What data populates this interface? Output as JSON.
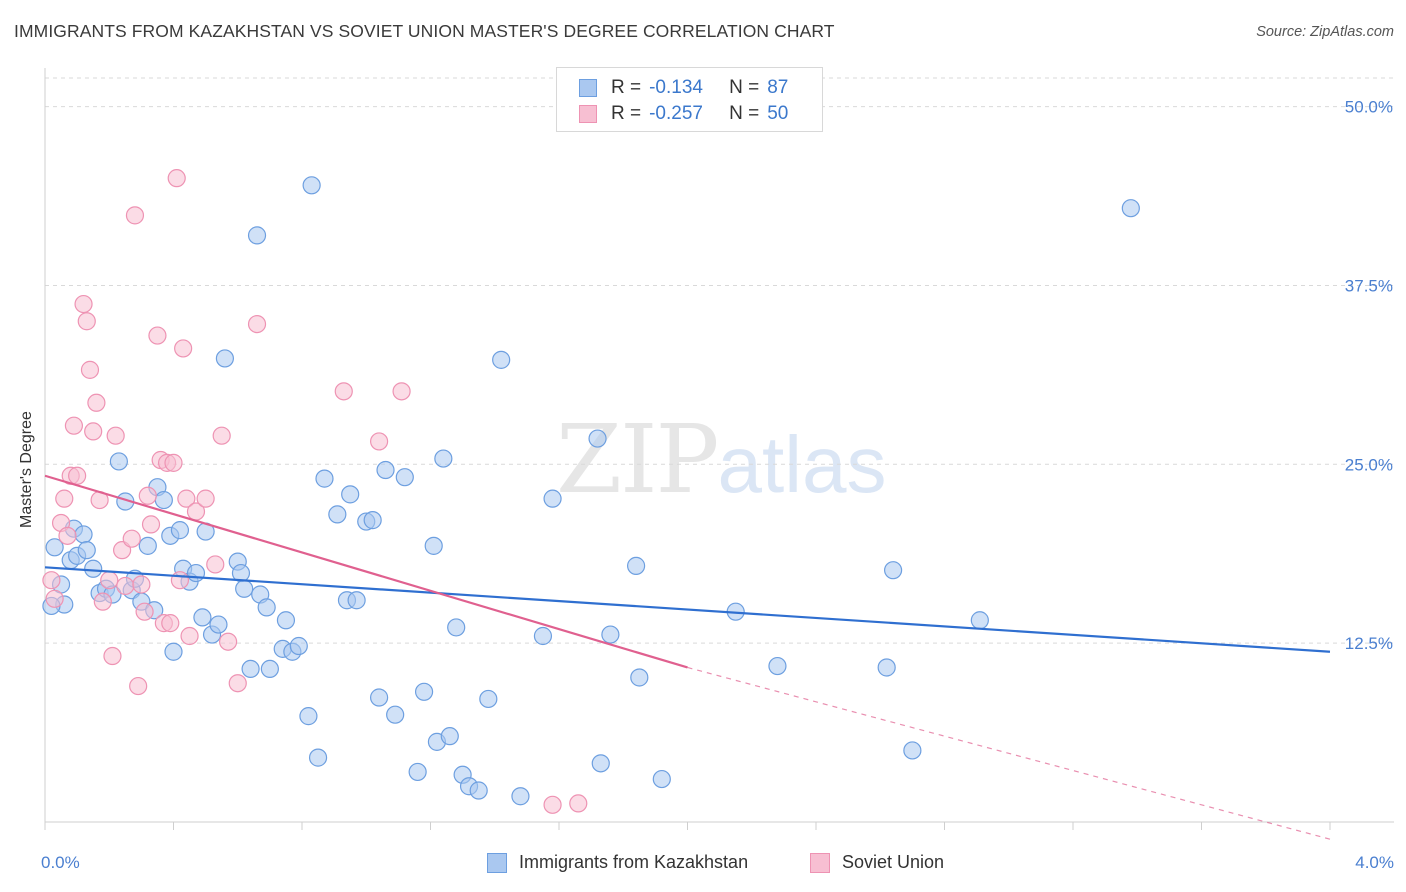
{
  "header": {
    "title": "IMMIGRANTS FROM KAZAKHSTAN VS SOVIET UNION MASTER'S DEGREE CORRELATION CHART",
    "source": "Source: ZipAtlas.com"
  },
  "watermark": {
    "zip": "ZIP",
    "atlas": "atlas"
  },
  "legend": {
    "rows": [
      {
        "r_label": "R =",
        "r_value": "-0.134",
        "n_label": "N =",
        "n_value": "87"
      },
      {
        "r_label": "R =",
        "r_value": "-0.257",
        "n_label": "N =",
        "n_value": "50"
      }
    ]
  },
  "bottom_legend": {
    "series1": "Immigrants from Kazakhstan",
    "series2": "Soviet Union"
  },
  "colors": {
    "blue_fill": "#aac8f0",
    "blue_stroke": "#6d9fe0",
    "blue_line": "#2f6fd0",
    "pink_fill": "#f7bfd2",
    "pink_stroke": "#ee93b3",
    "pink_line": "#e0608f",
    "grid": "#d9d9d9",
    "tick_text": "#4a7fd0"
  },
  "chart_data": {
    "type": "scatter",
    "title": "IMMIGRANTS FROM KAZAKHSTAN VS SOVIET UNION MASTER'S DEGREE CORRELATION CHART",
    "xlabel": "",
    "ylabel": "Master's Degree",
    "xlim": [
      0.0,
      4.0
    ],
    "ylim": [
      0.0,
      52.0
    ],
    "x_tick_labels": [
      "0.0%",
      "4.0%"
    ],
    "y_ticks": [
      12.5,
      25.0,
      37.5,
      50.0
    ],
    "y_tick_labels": [
      "12.5%",
      "25.0%",
      "37.5%",
      "50.0%"
    ],
    "grid": "horizontal dashed",
    "legend_position": "top-center",
    "series": [
      {
        "name": "Immigrants from Kazakhstan",
        "color": "#6d9fe0",
        "trend": {
          "x0": 0.0,
          "y0": 17.8,
          "x1": 4.0,
          "y1": 11.9,
          "dashed_after": null
        },
        "points": [
          [
            0.03,
            19.2
          ],
          [
            0.05,
            16.6
          ],
          [
            0.06,
            15.2
          ],
          [
            0.08,
            18.3
          ],
          [
            0.09,
            20.5
          ],
          [
            0.1,
            18.6
          ],
          [
            0.12,
            20.1
          ],
          [
            0.13,
            19.0
          ],
          [
            0.15,
            17.7
          ],
          [
            0.17,
            16.0
          ],
          [
            0.19,
            16.3
          ],
          [
            0.21,
            15.9
          ],
          [
            0.23,
            25.2
          ],
          [
            0.25,
            22.4
          ],
          [
            0.27,
            16.2
          ],
          [
            0.28,
            17.0
          ],
          [
            0.3,
            15.4
          ],
          [
            0.32,
            19.3
          ],
          [
            0.34,
            14.8
          ],
          [
            0.35,
            23.4
          ],
          [
            0.37,
            22.5
          ],
          [
            0.39,
            20.0
          ],
          [
            0.4,
            11.9
          ],
          [
            0.42,
            20.4
          ],
          [
            0.43,
            17.7
          ],
          [
            0.45,
            16.8
          ],
          [
            0.47,
            17.4
          ],
          [
            0.49,
            14.3
          ],
          [
            0.5,
            20.3
          ],
          [
            0.52,
            13.1
          ],
          [
            0.54,
            13.8
          ],
          [
            0.56,
            32.4
          ],
          [
            0.6,
            18.2
          ],
          [
            0.61,
            17.4
          ],
          [
            0.62,
            16.3
          ],
          [
            0.64,
            10.7
          ],
          [
            0.66,
            41.0
          ],
          [
            0.67,
            15.9
          ],
          [
            0.69,
            15.0
          ],
          [
            0.7,
            10.7
          ],
          [
            0.74,
            12.1
          ],
          [
            0.75,
            14.1
          ],
          [
            0.77,
            11.9
          ],
          [
            0.79,
            12.3
          ],
          [
            0.82,
            7.4
          ],
          [
            0.83,
            44.5
          ],
          [
            0.85,
            4.5
          ],
          [
            0.87,
            24.0
          ],
          [
            0.91,
            21.5
          ],
          [
            0.94,
            15.5
          ],
          [
            0.95,
            22.9
          ],
          [
            0.97,
            15.5
          ],
          [
            1.0,
            21.0
          ],
          [
            1.02,
            21.1
          ],
          [
            1.04,
            8.7
          ],
          [
            1.06,
            24.6
          ],
          [
            1.09,
            7.5
          ],
          [
            1.12,
            24.1
          ],
          [
            1.16,
            3.5
          ],
          [
            1.18,
            9.1
          ],
          [
            1.21,
            19.3
          ],
          [
            1.22,
            5.6
          ],
          [
            1.24,
            25.4
          ],
          [
            1.26,
            6.0
          ],
          [
            1.28,
            13.6
          ],
          [
            1.3,
            3.3
          ],
          [
            1.32,
            2.5
          ],
          [
            1.35,
            2.2
          ],
          [
            1.38,
            8.6
          ],
          [
            1.42,
            32.3
          ],
          [
            1.48,
            1.8
          ],
          [
            1.55,
            13.0
          ],
          [
            1.58,
            22.6
          ],
          [
            1.72,
            26.8
          ],
          [
            1.73,
            4.1
          ],
          [
            1.76,
            13.1
          ],
          [
            1.84,
            17.9
          ],
          [
            1.85,
            10.1
          ],
          [
            1.92,
            3.0
          ],
          [
            2.15,
            14.7
          ],
          [
            2.28,
            10.9
          ],
          [
            2.62,
            10.8
          ],
          [
            2.64,
            17.6
          ],
          [
            2.7,
            5.0
          ],
          [
            2.91,
            14.1
          ],
          [
            3.38,
            42.9
          ],
          [
            0.02,
            15.1
          ]
        ]
      },
      {
        "name": "Soviet Union",
        "color": "#ee93b3",
        "trend": {
          "x0": 0.0,
          "y0": 24.2,
          "x1": 2.0,
          "y1": 10.8,
          "dashed_to": [
            4.0,
            -1.2
          ]
        },
        "points": [
          [
            0.02,
            16.9
          ],
          [
            0.03,
            15.6
          ],
          [
            0.05,
            20.9
          ],
          [
            0.06,
            22.6
          ],
          [
            0.07,
            20.0
          ],
          [
            0.08,
            24.2
          ],
          [
            0.09,
            27.7
          ],
          [
            0.1,
            24.2
          ],
          [
            0.12,
            36.2
          ],
          [
            0.13,
            35.0
          ],
          [
            0.14,
            31.6
          ],
          [
            0.15,
            27.3
          ],
          [
            0.16,
            29.3
          ],
          [
            0.17,
            22.5
          ],
          [
            0.18,
            15.4
          ],
          [
            0.2,
            16.9
          ],
          [
            0.21,
            11.6
          ],
          [
            0.22,
            27.0
          ],
          [
            0.24,
            19.0
          ],
          [
            0.25,
            16.5
          ],
          [
            0.27,
            19.8
          ],
          [
            0.28,
            42.4
          ],
          [
            0.29,
            9.5
          ],
          [
            0.3,
            16.6
          ],
          [
            0.31,
            14.7
          ],
          [
            0.32,
            22.8
          ],
          [
            0.33,
            20.8
          ],
          [
            0.35,
            34.0
          ],
          [
            0.36,
            25.3
          ],
          [
            0.37,
            13.9
          ],
          [
            0.38,
            25.1
          ],
          [
            0.39,
            13.9
          ],
          [
            0.4,
            25.1
          ],
          [
            0.41,
            45.0
          ],
          [
            0.42,
            16.9
          ],
          [
            0.43,
            33.1
          ],
          [
            0.44,
            22.6
          ],
          [
            0.45,
            13.0
          ],
          [
            0.47,
            21.7
          ],
          [
            0.5,
            22.6
          ],
          [
            0.53,
            18.0
          ],
          [
            0.55,
            27.0
          ],
          [
            0.57,
            12.6
          ],
          [
            0.6,
            9.7
          ],
          [
            0.66,
            34.8
          ],
          [
            0.93,
            30.1
          ],
          [
            1.04,
            26.6
          ],
          [
            1.11,
            30.1
          ],
          [
            1.58,
            1.2
          ],
          [
            1.66,
            1.3
          ]
        ]
      }
    ]
  }
}
